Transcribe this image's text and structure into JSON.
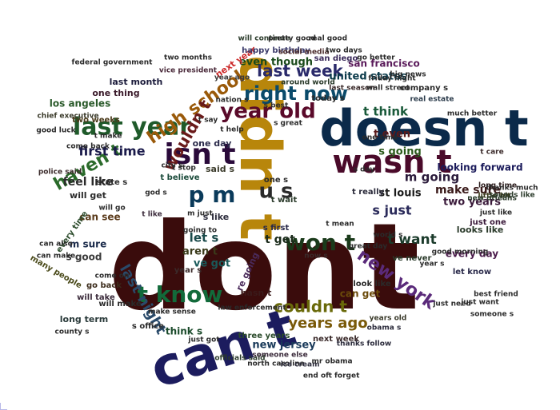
{
  "word_cloud": {
    "words": [
      {
        "text": "dont",
        "color": "#3a0c0c"
      },
      {
        "text": "doesn t",
        "color": "#0b2a4a"
      },
      {
        "text": "didn t",
        "color": "#b8860b"
      },
      {
        "text": "can t",
        "color": "#1c1c5e"
      },
      {
        "text": "wasn t",
        "color": "#4a0a2a"
      },
      {
        "text": "isn t",
        "color": "#2a0a3a"
      },
      {
        "text": "last year",
        "color": "#1f5a2a"
      },
      {
        "text": "year old",
        "color": "#5a0a2a"
      },
      {
        "text": "won t",
        "color": "#1a3a1a"
      },
      {
        "text": "t know",
        "color": "#126a3a"
      },
      {
        "text": "p m",
        "color": "#0a3a5a"
      },
      {
        "text": "u s",
        "color": "#2a2a2a"
      },
      {
        "text": "right now",
        "color": "#0a4a6a"
      },
      {
        "text": "new york",
        "color": "#5a2a7a"
      },
      {
        "text": "high school",
        "color": "#9a5a0a"
      },
      {
        "text": "wouldn t",
        "color": "#6a1a1a"
      },
      {
        "text": "haven t",
        "color": "#2a6a2a"
      },
      {
        "text": "last week",
        "color": "#2a2a6a"
      },
      {
        "text": "couldn t",
        "color": "#6a6a0a"
      },
      {
        "text": "years ago",
        "color": "#7a5a0a"
      },
      {
        "text": "first time",
        "color": "#1a1a4a"
      },
      {
        "text": "last night",
        "color": "#2a4a6a"
      },
      {
        "text": "feel like",
        "color": "#2a2a2a"
      },
      {
        "text": "t want",
        "color": "#1a3a2a"
      },
      {
        "text": "t think",
        "color": "#1a5a3a"
      },
      {
        "text": "m going",
        "color": "#2a1a3a"
      },
      {
        "text": "t get",
        "color": "#1a2a1a"
      },
      {
        "text": "let s",
        "color": "#1a4a4a"
      },
      {
        "text": "s just",
        "color": "#2a2a5a"
      },
      {
        "text": "st louis",
        "color": "#1a1a1a"
      },
      {
        "text": "make sure",
        "color": "#3a1a1a"
      },
      {
        "text": "united states",
        "color": "#0a3a4a"
      },
      {
        "text": "even though",
        "color": "#1a4a1a"
      },
      {
        "text": "san francisco",
        "color": "#5a1a5a"
      },
      {
        "text": "los angeles",
        "color": "#2a5a2a"
      },
      {
        "text": "looking forward",
        "color": "#1a1a5a"
      },
      {
        "text": "two years",
        "color": "#3a1a3a"
      },
      {
        "text": "new jersey",
        "color": "#1a3a5a"
      },
      {
        "text": "aren t",
        "color": "#3a3a1a"
      },
      {
        "text": "ve got",
        "color": "#1a5a5a"
      },
      {
        "text": "s going",
        "color": "#2a5a1a"
      },
      {
        "text": "t even",
        "color": "#5a1a1a"
      },
      {
        "text": "s good",
        "color": "#3a3a3a"
      },
      {
        "text": "m sure",
        "color": "#1a2a4a"
      },
      {
        "text": "can see",
        "color": "#5a3a1a"
      },
      {
        "text": "every day",
        "color": "#4a1a4a"
      },
      {
        "text": "think s",
        "color": "#1a4a2a"
      },
      {
        "text": "can get",
        "color": "#6a4a0a"
      },
      {
        "text": "last month",
        "color": "#1a1a3a"
      },
      {
        "text": "one thing",
        "color": "#3a1a2a"
      },
      {
        "text": "looks like",
        "color": "#2a3a2a"
      },
      {
        "text": "will get",
        "color": "#2a2a2a"
      },
      {
        "text": "hasn t",
        "color": "#3a1a1a"
      },
      {
        "text": "one day",
        "color": "#2a2a4a"
      },
      {
        "text": "next year",
        "color": "#cc2a2a"
      },
      {
        "text": "happy birthday",
        "color": "#3a3a6a"
      },
      {
        "text": "long term",
        "color": "#2a3a3a"
      },
      {
        "text": "many people",
        "color": "#4a4a1a"
      },
      {
        "text": "go back",
        "color": "#3a2a1a"
      },
      {
        "text": "will make",
        "color": "#2a2a2a"
      },
      {
        "text": "two weeks",
        "color": "#4a3a1a"
      },
      {
        "text": "t believe",
        "color": "#1a4a3a"
      },
      {
        "text": "state s",
        "color": "#2a2a2a"
      },
      {
        "text": "will take",
        "color": "#3a2a3a"
      },
      {
        "text": "let know",
        "color": "#2a2a4a"
      },
      {
        "text": "just one",
        "color": "#3a1a3a"
      },
      {
        "text": "just like",
        "color": "#2a2a2a"
      },
      {
        "text": "little bit",
        "color": "#3a3a1a"
      },
      {
        "text": "long time",
        "color": "#2a1a1a"
      },
      {
        "text": "san diego",
        "color": "#3a2a5a"
      },
      {
        "text": "social media",
        "color": "#4a2a2a"
      },
      {
        "text": "company s",
        "color": "#2a2a2a"
      },
      {
        "text": "real estate",
        "color": "#2a3a4a"
      },
      {
        "text": "vice president",
        "color": "#4a2a3a"
      },
      {
        "text": "year ago",
        "color": "#3a3a3a"
      },
      {
        "text": "three years",
        "color": "#2a4a2a"
      },
      {
        "text": "next week",
        "color": "#3a2a2a"
      },
      {
        "text": "thanks follow",
        "color": "#2a2a3a"
      },
      {
        "text": "officials said",
        "color": "#2a3a2a"
      },
      {
        "text": "north carolina",
        "color": "#2a2a2a"
      },
      {
        "text": "someone else",
        "color": "#3a2a3a"
      },
      {
        "text": "obama s",
        "color": "#2a2a3a"
      },
      {
        "text": "years old",
        "color": "#3a3a2a"
      },
      {
        "text": "look like",
        "color": "#2a2a2a"
      },
      {
        "text": "ve never",
        "color": "#2a3a2a"
      },
      {
        "text": "s first",
        "color": "#2a2a4a"
      },
      {
        "text": "police said",
        "color": "#3a2a2a"
      },
      {
        "text": "come back",
        "color": "#2a2a2a"
      },
      {
        "text": "every time",
        "color": "#2a4a2a"
      },
      {
        "text": "s like",
        "color": "#2a2a3a"
      },
      {
        "text": "re going",
        "color": "#4a2a5a"
      },
      {
        "text": "good luck",
        "color": "#2a2a2a"
      },
      {
        "text": "new orleans",
        "color": "#2a3a2a"
      },
      {
        "text": "today s",
        "color": "#2a2a2a"
      },
      {
        "text": "said s",
        "color": "#3a3a2a"
      },
      {
        "text": "s office",
        "color": "#2a2a2a"
      },
      {
        "text": "one s",
        "color": "#2a2a2a"
      },
      {
        "text": "year s",
        "color": "#3a2a2a"
      },
      {
        "text": "t say",
        "color": "#2a2a2a"
      },
      {
        "text": "t wait",
        "color": "#2a3a2a"
      },
      {
        "text": "t really",
        "color": "#2a2a3a"
      },
      {
        "text": "t make",
        "color": "#2a2a2a"
      },
      {
        "text": "s great",
        "color": "#2a2a2a"
      },
      {
        "text": "t care",
        "color": "#3a2a2a"
      },
      {
        "text": "world s",
        "color": "#2a2a2a"
      },
      {
        "text": "sounds like",
        "color": "#2a3a2a"
      },
      {
        "text": "one time",
        "color": "#2a2a2a"
      },
      {
        "text": "s best",
        "color": "#2a2a2a"
      },
      {
        "text": "t like",
        "color": "#3a2a3a"
      },
      {
        "text": "going to",
        "color": "#2a2a2a"
      },
      {
        "text": "nation s",
        "color": "#2a2a2a"
      },
      {
        "text": "chief executive",
        "color": "#3a3a2a"
      },
      {
        "text": "ice cream",
        "color": "#2a2a3a"
      },
      {
        "text": "end of",
        "color": "#2a2a2a"
      },
      {
        "text": "around world",
        "color": "#2a3a2a"
      },
      {
        "text": "city s",
        "color": "#2a2a2a"
      },
      {
        "text": "god s",
        "color": "#2a2a2a"
      },
      {
        "text": "now s",
        "color": "#3a2a2a"
      },
      {
        "text": "mr obama",
        "color": "#2a2a2a"
      },
      {
        "text": "last season",
        "color": "#3a2a2a"
      },
      {
        "text": "wall street",
        "color": "#2a2a2a"
      },
      {
        "text": "will continue",
        "color": "#2a3a2a"
      },
      {
        "text": "pretty good",
        "color": "#2a2a2a"
      },
      {
        "text": "real good",
        "color": "#2a2a2a"
      },
      {
        "text": "good morning",
        "color": "#2a2a2a"
      },
      {
        "text": "county s",
        "color": "#2a2a2a"
      },
      {
        "text": "just got",
        "color": "#2a2a2a"
      },
      {
        "text": "can also",
        "color": "#2a2a2a"
      },
      {
        "text": "can make",
        "color": "#2a2a2a"
      },
      {
        "text": "come on",
        "color": "#2a2a2a"
      },
      {
        "text": "make sense",
        "color": "#2a2a2a"
      },
      {
        "text": "someone s",
        "color": "#2a2a2a"
      },
      {
        "text": "t stop",
        "color": "#2a2a2a"
      },
      {
        "text": "t help",
        "color": "#2a2a2a"
      },
      {
        "text": "t mean",
        "color": "#2a2a2a"
      },
      {
        "text": "s day",
        "color": "#2a2a2a"
      },
      {
        "text": "great day",
        "color": "#2a2a2a"
      },
      {
        "text": "just want",
        "color": "#2a2a2a"
      },
      {
        "text": "m just",
        "color": "#2a2a2a"
      },
      {
        "text": "law enforcement",
        "color": "#2a2a2a"
      },
      {
        "text": "much better",
        "color": "#2a2a2a"
      },
      {
        "text": "best friend",
        "color": "#2a2a2a"
      },
      {
        "text": "friday night",
        "color": "#2a2a2a"
      },
      {
        "text": "year s",
        "color": "#2a2a2a"
      },
      {
        "text": "federal government",
        "color": "#2a2a2a"
      },
      {
        "text": "two months",
        "color": "#2a2a2a"
      },
      {
        "text": "two days",
        "color": "#2a2a2a"
      },
      {
        "text": "go better",
        "color": "#2a2a2a"
      },
      {
        "text": "just need",
        "color": "#2a2a2a"
      },
      {
        "text": "will go",
        "color": "#2a2a2a"
      },
      {
        "text": "thanks much",
        "color": "#2a2a2a"
      },
      {
        "text": "t forget",
        "color": "#2a2a2a"
      },
      {
        "text": "big news",
        "color": "#2a2a2a"
      }
    ]
  }
}
